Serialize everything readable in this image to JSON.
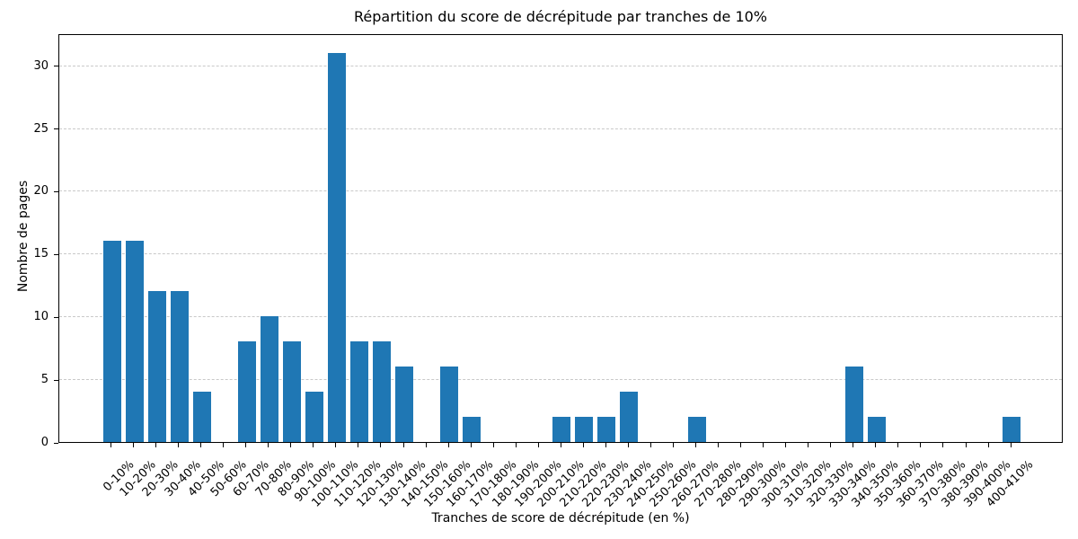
{
  "chart_data": {
    "type": "bar",
    "title": "Répartition du score de décrépitude par tranches de 10%",
    "xlabel": "Tranches de score de décrépitude (en %)",
    "ylabel": "Nombre de pages",
    "categories": [
      "0-10%",
      "10-20%",
      "20-30%",
      "30-40%",
      "40-50%",
      "50-60%",
      "60-70%",
      "70-80%",
      "80-90%",
      "90-100%",
      "100-110%",
      "110-120%",
      "120-130%",
      "130-140%",
      "140-150%",
      "150-160%",
      "160-170%",
      "170-180%",
      "180-190%",
      "190-200%",
      "200-210%",
      "210-220%",
      "220-230%",
      "230-240%",
      "240-250%",
      "250-260%",
      "260-270%",
      "270-280%",
      "280-290%",
      "290-300%",
      "300-310%",
      "310-320%",
      "320-330%",
      "330-340%",
      "340-350%",
      "350-360%",
      "360-370%",
      "370-380%",
      "380-390%",
      "390-400%",
      "400-410%"
    ],
    "values": [
      16,
      16,
      12,
      12,
      4,
      0,
      8,
      10,
      8,
      4,
      31,
      8,
      8,
      6,
      0,
      6,
      2,
      0,
      0,
      0,
      2,
      2,
      2,
      4,
      0,
      0,
      2,
      0,
      0,
      0,
      0,
      0,
      0,
      6,
      2,
      0,
      0,
      0,
      0,
      0,
      2
    ],
    "yticks": [
      0,
      5,
      10,
      15,
      20,
      25,
      30
    ],
    "ylim": [
      0,
      32.55
    ],
    "xtick_rotation_deg": 45,
    "bar_color": "#1f77b4",
    "grid": {
      "axis": "y",
      "style": "dashed",
      "color": "#c9c9c9"
    },
    "legend_position": "none"
  }
}
